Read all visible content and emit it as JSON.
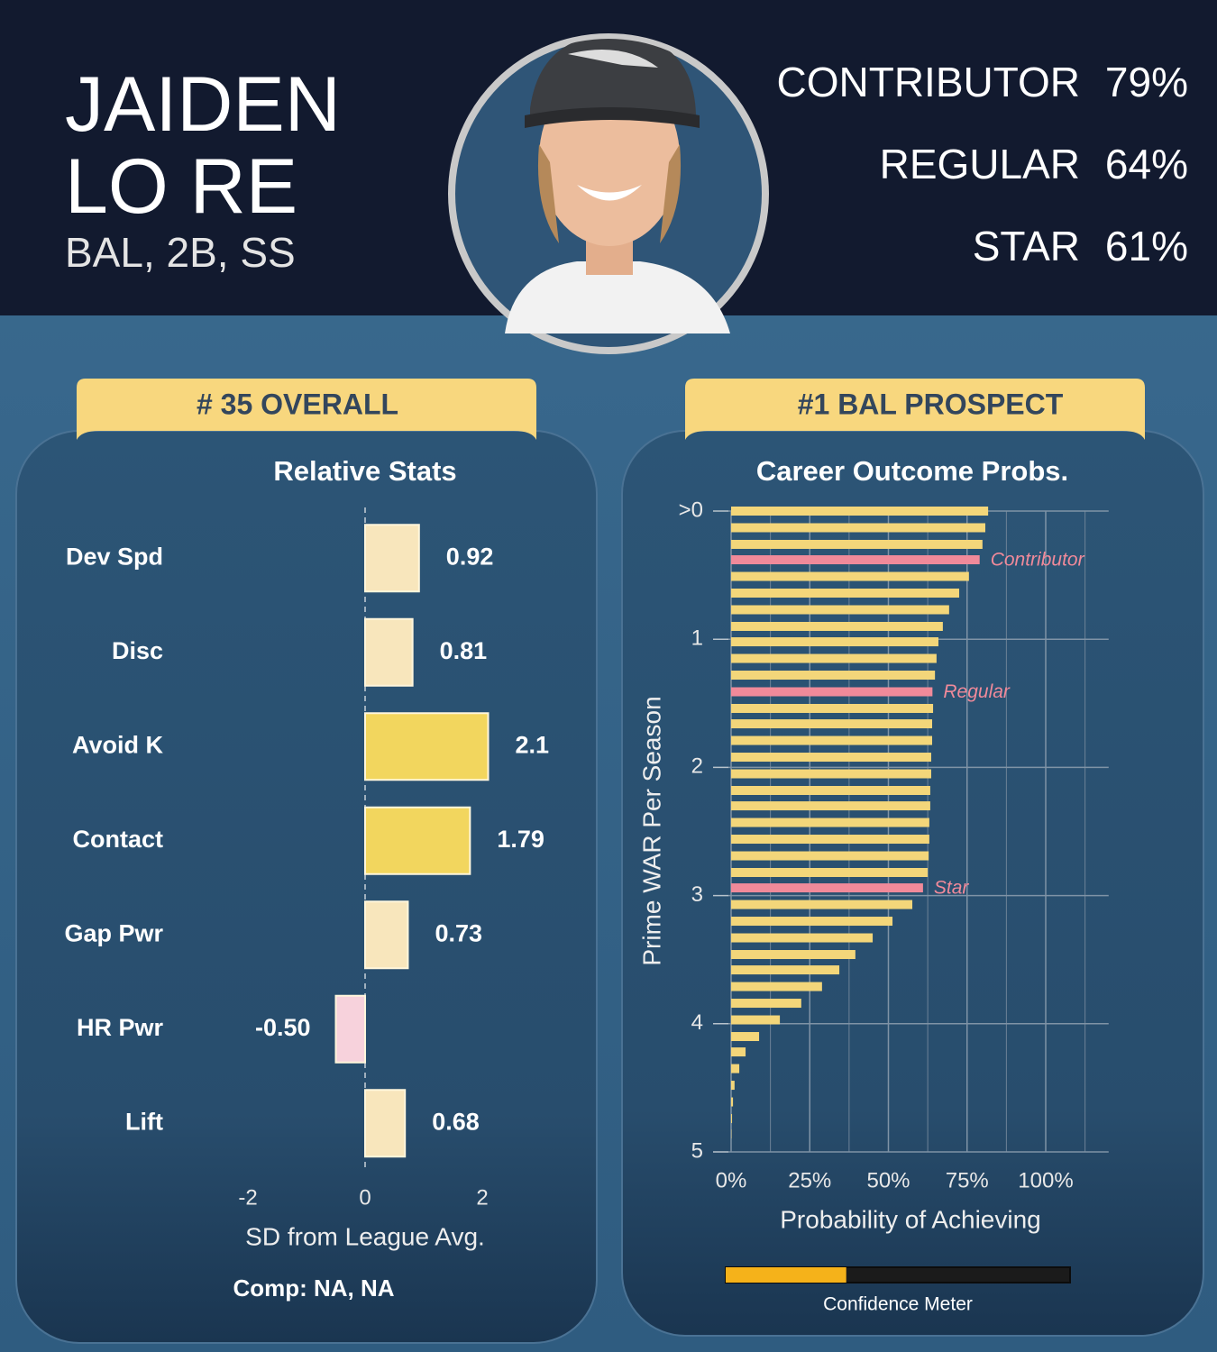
{
  "header": {
    "name_first": "JAIDEN",
    "name_last": "LO RE",
    "positions": "BAL, 2B, SS",
    "outcomes": [
      {
        "label": "CONTRIBUTOR",
        "value": "79%"
      },
      {
        "label": "REGULAR",
        "value": "64%"
      },
      {
        "label": "STAR",
        "value": "61%"
      }
    ]
  },
  "badges": [
    "# 35 OVERALL",
    "#1 BAL PROSPECT"
  ],
  "comp": "Comp: NA, NA",
  "confidence_meter": {
    "label": "Confidence Meter",
    "value": 35,
    "range": [
      0,
      100
    ],
    "color": "#f5b21a"
  },
  "chart_data": [
    {
      "type": "bar",
      "orientation": "horizontal",
      "title": "Relative Stats",
      "x_label": "SD from League Avg.",
      "categories": [
        "Dev Spd",
        "Disc",
        "Avoid K",
        "Contact",
        "Gap Pwr",
        "HR Pwr",
        "Lift"
      ],
      "values": [
        0.92,
        0.81,
        2.1,
        1.79,
        0.73,
        -0.5,
        0.68
      ],
      "value_labels": [
        "0.92",
        "0.81",
        "2.1",
        "1.79",
        "0.73",
        "-0.50",
        "0.68"
      ],
      "colors": [
        "#f8e6bc",
        "#f8e6bc",
        "#f2d65e",
        "#f2d65e",
        "#f8e6bc",
        "#f7d2dc",
        "#f8e6bc"
      ],
      "xlim": [
        -2.7,
        3.3
      ],
      "xticks": [
        -2,
        0,
        2
      ],
      "grid": false
    },
    {
      "type": "bar",
      "orientation": "horizontal",
      "title": "Career Outcome Probs.",
      "x_label": "Probability of Achieving",
      "y_label": "Prime WAR Per Season",
      "y": [
        0,
        0.13,
        0.26,
        0.38,
        0.51,
        0.64,
        0.77,
        0.9,
        1.02,
        1.15,
        1.28,
        1.41,
        1.54,
        1.66,
        1.79,
        1.92,
        2.05,
        2.18,
        2.3,
        2.43,
        2.56,
        2.69,
        2.82,
        2.94,
        3.07,
        3.2,
        3.33,
        3.46,
        3.58,
        3.71,
        3.84,
        3.97,
        4.1,
        4.22,
        4.35,
        4.48,
        4.61,
        4.74,
        4.86
      ],
      "values": [
        81.7,
        80.8,
        79.9,
        79,
        75.6,
        72.5,
        69.3,
        67.3,
        65.9,
        65.3,
        64.8,
        64,
        64.2,
        63.9,
        63.9,
        63.6,
        63.6,
        63.3,
        63.3,
        63,
        63,
        62.8,
        62.5,
        61,
        57.6,
        51.3,
        45,
        39.5,
        34.4,
        28.9,
        22.3,
        15.5,
        8.9,
        4.6,
        2.6,
        1.1,
        0.6,
        0.3,
        0.1
      ],
      "annotations": [
        null,
        null,
        null,
        "Contributor",
        null,
        null,
        null,
        null,
        null,
        null,
        null,
        "Regular",
        null,
        null,
        null,
        null,
        null,
        null,
        null,
        null,
        null,
        null,
        null,
        "Star",
        null,
        null,
        null,
        null,
        null,
        null,
        null,
        null,
        null,
        null,
        null,
        null,
        null,
        null,
        null
      ],
      "color": "#f3d67a",
      "highlight_color": "#f08a9a",
      "xlim": [
        0,
        120
      ],
      "xticks": [
        {
          "value": 0,
          "label": "0%"
        },
        {
          "value": 25,
          "label": "25%"
        },
        {
          "value": 50,
          "label": "50%"
        },
        {
          "value": 75,
          "label": "75%"
        },
        {
          "value": 100,
          "label": "100%"
        }
      ],
      "xminor": [
        12.5,
        37.5,
        62.5,
        87.5,
        112.5
      ],
      "ylim": [
        0,
        5
      ],
      "yticks": [
        {
          "value": 0,
          "label": ">0"
        },
        1,
        2,
        3,
        4,
        5
      ],
      "grid": true
    }
  ]
}
